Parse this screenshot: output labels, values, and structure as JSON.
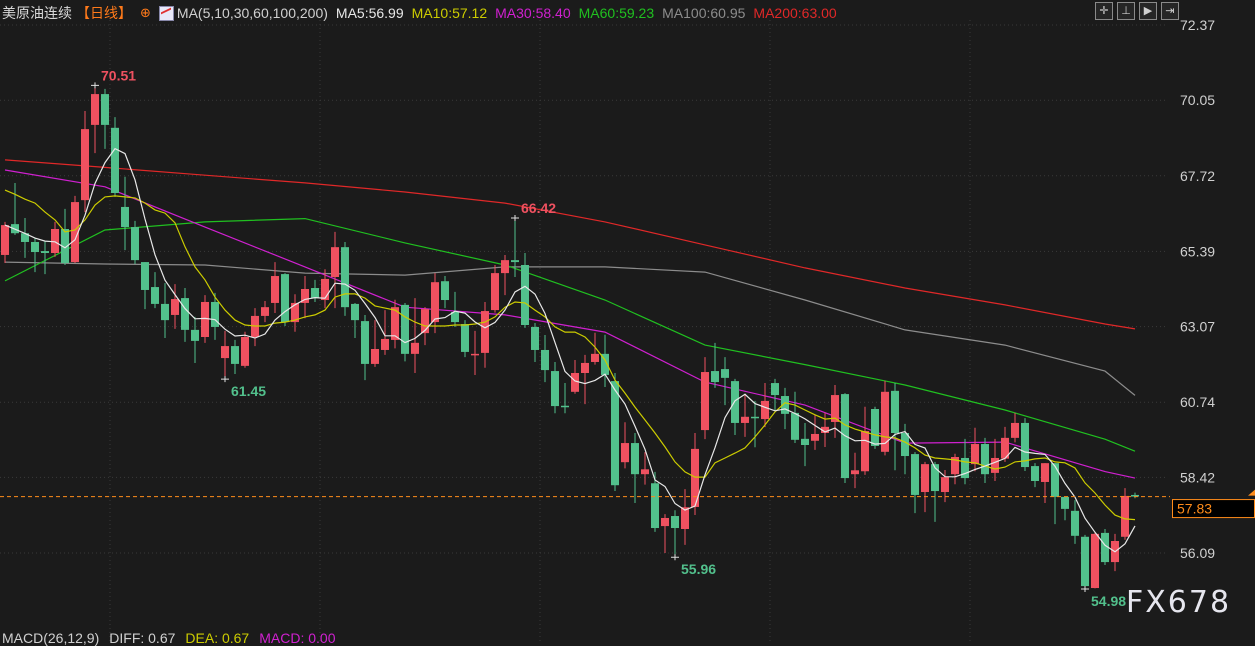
{
  "header": {
    "title": "美原油连续",
    "period": "【日线】",
    "ma_params": "MA(5,10,30,60,100,200)",
    "ma5": "MA5:56.99",
    "ma10": "MA10:57.12",
    "ma30": "MA30:58.40",
    "ma60": "MA60:59.23",
    "ma100": "MA100:60.95",
    "ma200": "MA200:63.00"
  },
  "toolbar": {
    "icons": [
      "crosshair-icon",
      "fit-range-icon",
      "play-icon",
      "exit-icon"
    ]
  },
  "macd": {
    "params": "MACD(26,12,9)",
    "diff": "DIFF: 0.67",
    "dea": "DEA: 0.67",
    "macd": "MACD: 0.00"
  },
  "watermark": "FX678",
  "colors": {
    "background": "#1b1b1b",
    "up": "#ef5160",
    "down": "#52c08c",
    "ma5": "#e8e8e8",
    "ma10": "#cccc00",
    "ma30": "#d020d0",
    "ma60": "#20c020",
    "ma100": "#8c8c8c",
    "ma200": "#e02828",
    "last_price": "#ff8c1a",
    "axis_text": "#d0d0d0"
  },
  "chart_data": {
    "type": "candlestick",
    "ylim": [
      54.7,
      72.37
    ],
    "y_ticks": [
      "72.37",
      "70.05",
      "67.72",
      "65.39",
      "63.07",
      "60.74",
      "58.42",
      "56.09"
    ],
    "grid": true,
    "last_price": "57.83",
    "ohlc_format": [
      "open",
      "high",
      "low",
      "close"
    ],
    "candles": [
      [
        65.28,
        66.3,
        65.03,
        66.2
      ],
      [
        66.23,
        67.5,
        65.9,
        65.95
      ],
      [
        65.95,
        66.42,
        65.19,
        65.68
      ],
      [
        65.68,
        65.8,
        64.75,
        65.37
      ],
      [
        65.4,
        65.71,
        64.69,
        65.34
      ],
      [
        65.34,
        66.3,
        65.22,
        66.08
      ],
      [
        66.08,
        66.7,
        64.97,
        65.03
      ],
      [
        65.06,
        67.1,
        65.03,
        66.91
      ],
      [
        66.97,
        69.72,
        66.6,
        69.16
      ],
      [
        69.29,
        70.51,
        68.42,
        70.24
      ],
      [
        70.24,
        70.4,
        68.55,
        69.29
      ],
      [
        69.2,
        69.53,
        67.07,
        67.19
      ],
      [
        66.76,
        67.69,
        65.43,
        66.14
      ],
      [
        66.14,
        66.33,
        65.0,
        65.12
      ],
      [
        65.06,
        65.06,
        63.61,
        64.2
      ],
      [
        64.29,
        64.75,
        63.64,
        63.77
      ],
      [
        63.77,
        64.41,
        62.72,
        63.27
      ],
      [
        63.43,
        64.38,
        63.0,
        63.92
      ],
      [
        63.95,
        64.26,
        62.6,
        62.97
      ],
      [
        62.97,
        63.37,
        61.95,
        62.63
      ],
      [
        62.75,
        64.04,
        62.57,
        63.83
      ],
      [
        63.83,
        64.11,
        62.66,
        63.06
      ],
      [
        62.1,
        62.94,
        61.45,
        62.47
      ],
      [
        62.47,
        62.66,
        61.61,
        61.92
      ],
      [
        61.86,
        62.91,
        61.8,
        62.75
      ],
      [
        62.75,
        63.64,
        62.47,
        63.4
      ],
      [
        63.4,
        63.86,
        63.21,
        63.67
      ],
      [
        63.8,
        65.06,
        63.49,
        64.63
      ],
      [
        64.69,
        64.72,
        63.09,
        63.21
      ],
      [
        63.21,
        64.07,
        62.91,
        63.8
      ],
      [
        63.8,
        64.63,
        63.33,
        64.23
      ],
      [
        64.26,
        64.51,
        63.83,
        63.95
      ],
      [
        63.89,
        64.84,
        63.64,
        64.54
      ],
      [
        64.6,
        65.99,
        63.64,
        65.52
      ],
      [
        65.52,
        65.68,
        63.4,
        63.67
      ],
      [
        63.77,
        63.8,
        62.72,
        63.27
      ],
      [
        63.24,
        63.43,
        61.42,
        61.92
      ],
      [
        61.92,
        63.27,
        61.83,
        62.38
      ],
      [
        62.35,
        63.58,
        62.2,
        62.69
      ],
      [
        62.66,
        63.9,
        62.4,
        63.67
      ],
      [
        63.74,
        63.8,
        62.0,
        62.23
      ],
      [
        62.23,
        63.95,
        61.64,
        62.57
      ],
      [
        62.87,
        63.67,
        62.5,
        63.61
      ],
      [
        63.21,
        64.72,
        62.87,
        64.44
      ],
      [
        64.47,
        64.63,
        63.64,
        63.89
      ],
      [
        63.52,
        64.14,
        63.06,
        63.21
      ],
      [
        63.15,
        63.27,
        62.13,
        62.29
      ],
      [
        62.2,
        62.94,
        61.58,
        62.23
      ],
      [
        62.26,
        63.83,
        61.8,
        63.55
      ],
      [
        63.58,
        64.97,
        63.5,
        64.72
      ],
      [
        64.72,
        65.28,
        64.04,
        65.12
      ],
      [
        65.12,
        66.42,
        64.6,
        65.06
      ],
      [
        64.97,
        65.34,
        63.03,
        63.12
      ],
      [
        63.06,
        63.18,
        61.98,
        62.35
      ],
      [
        62.35,
        62.81,
        61.36,
        61.73
      ],
      [
        61.7,
        61.98,
        60.4,
        60.62
      ],
      [
        60.63,
        61.33,
        60.4,
        60.62
      ],
      [
        61.06,
        62.04,
        61.0,
        61.64
      ],
      [
        61.64,
        62.2,
        60.68,
        61.95
      ],
      [
        61.98,
        62.88,
        61.9,
        62.23
      ],
      [
        62.23,
        62.82,
        61.21,
        61.58
      ],
      [
        61.39,
        61.64,
        58.0,
        58.18
      ],
      [
        58.89,
        60.12,
        58.7,
        59.48
      ],
      [
        59.48,
        59.79,
        57.63,
        58.52
      ],
      [
        58.52,
        59.2,
        58.2,
        58.67
      ],
      [
        58.24,
        58.59,
        56.74,
        56.86
      ],
      [
        56.92,
        57.29,
        56.09,
        57.17
      ],
      [
        57.23,
        57.41,
        55.96,
        56.86
      ],
      [
        56.83,
        58.06,
        56.34,
        57.5
      ],
      [
        57.51,
        59.79,
        57.26,
        59.3
      ],
      [
        59.88,
        62.13,
        59.6,
        61.67
      ],
      [
        61.7,
        62.57,
        61.18,
        61.36
      ],
      [
        61.76,
        62.13,
        60.65,
        61.49
      ],
      [
        61.39,
        61.46,
        59.73,
        60.1
      ],
      [
        60.1,
        61.0,
        59.67,
        60.29
      ],
      [
        60.29,
        60.78,
        59.35,
        60.25
      ],
      [
        60.22,
        61.33,
        59.97,
        60.78
      ],
      [
        61.33,
        61.46,
        60.5,
        60.96
      ],
      [
        60.93,
        61.18,
        59.91,
        60.38
      ],
      [
        60.41,
        61.06,
        59.48,
        59.58
      ],
      [
        59.61,
        60.1,
        58.77,
        59.42
      ],
      [
        59.55,
        60.35,
        59.27,
        59.76
      ],
      [
        59.79,
        60.41,
        59.36,
        59.98
      ],
      [
        60.13,
        61.27,
        59.64,
        60.96
      ],
      [
        60.99,
        61.02,
        58.25,
        58.4
      ],
      [
        58.52,
        59.18,
        58.09,
        58.64
      ],
      [
        58.61,
        60.6,
        58.5,
        59.85
      ],
      [
        60.53,
        60.6,
        59.3,
        59.39
      ],
      [
        59.21,
        61.4,
        59.1,
        61.06
      ],
      [
        61.09,
        61.33,
        58.64,
        59.79
      ],
      [
        59.79,
        60.07,
        58.52,
        59.08
      ],
      [
        59.14,
        59.2,
        57.32,
        57.88
      ],
      [
        57.97,
        58.9,
        57.35,
        58.83
      ],
      [
        58.83,
        58.9,
        57.05,
        58.0
      ],
      [
        57.97,
        58.65,
        57.66,
        58.43
      ],
      [
        58.52,
        59.15,
        58.21,
        59.05
      ],
      [
        59.02,
        59.61,
        58.21,
        58.4
      ],
      [
        58.83,
        59.95,
        58.61,
        59.45
      ],
      [
        59.45,
        59.64,
        58.25,
        58.52
      ],
      [
        58.56,
        59.61,
        58.31,
        59.02
      ],
      [
        59.0,
        59.98,
        58.9,
        59.64
      ],
      [
        59.64,
        60.41,
        59.5,
        60.1
      ],
      [
        60.1,
        60.25,
        58.62,
        58.74
      ],
      [
        58.77,
        58.86,
        58.12,
        58.31
      ],
      [
        58.28,
        58.86,
        57.63,
        58.86
      ],
      [
        58.86,
        58.86,
        56.98,
        57.82
      ],
      [
        57.82,
        57.82,
        57.1,
        57.45
      ],
      [
        57.39,
        57.72,
        56.37,
        56.62
      ],
      [
        56.59,
        56.65,
        54.98,
        55.07
      ],
      [
        55.01,
        56.74,
        55.0,
        56.68
      ],
      [
        56.71,
        56.83,
        55.72,
        55.81
      ],
      [
        55.81,
        56.68,
        55.53,
        56.46
      ],
      [
        56.59,
        58.09,
        56.5,
        57.85
      ],
      [
        57.88,
        57.95,
        57.78,
        57.83
      ]
    ],
    "ma10": [
      67.28,
      67.15,
      67.0,
      66.88,
      66.6,
      66.36,
      65.99,
      66.05,
      66.36,
      66.82,
      67.07,
      67.1,
      67.07,
      67.04,
      66.88,
      66.67,
      66.57,
      66.27,
      65.53,
      64.91,
      64.51,
      63.98,
      63.58,
      63.27,
      63.12,
      63.09,
      63.09,
      63.18,
      63.21,
      63.27,
      63.37,
      63.43,
      63.58,
      63.98,
      64.08,
      64.08,
      63.95,
      63.71,
      63.64,
      63.58,
      63.37,
      63.21,
      63.09,
      63.09,
      63.09,
      63.12,
      63.12,
      63.15,
      63.21,
      63.37,
      63.67,
      63.83,
      63.8,
      63.58,
      63.37,
      63.06,
      62.9,
      62.9,
      62.75,
      62.44,
      62.04,
      61.42,
      61.02,
      60.59,
      60.19,
      59.79,
      59.36,
      58.9,
      58.59,
      58.43,
      58.43,
      58.87,
      59.02,
      59.17,
      59.33,
      59.67,
      60.04,
      60.44,
      60.72,
      60.65,
      60.5,
      60.35,
      60.22,
      60.25,
      60.04,
      59.91,
      59.82,
      59.73,
      59.67,
      59.64,
      59.51,
      59.33,
      59.11,
      59.02,
      58.99,
      58.96,
      58.9,
      58.87,
      58.77,
      58.68,
      58.74,
      58.9,
      58.93,
      58.99,
      59.02,
      58.9,
      58.87,
      58.71,
      58.25,
      57.94,
      57.57,
      57.26,
      57.14,
      57.12
    ],
    "ma_sample_index": [
      0,
      10,
      20,
      30,
      40,
      50,
      60,
      70,
      80,
      90,
      100,
      110,
      113
    ],
    "ma30": [
      67.9,
      67.38,
      66.14,
      64.91,
      63.67,
      63.43,
      62.9,
      61.36,
      60.65,
      59.48,
      59.51,
      58.6,
      58.4
    ],
    "ma60": [
      64.48,
      66.05,
      66.3,
      66.4,
      65.65,
      64.97,
      63.89,
      62.5,
      61.9,
      61.27,
      60.5,
      59.6,
      59.23
    ],
    "ma100": [
      65.06,
      65.0,
      64.97,
      64.72,
      64.66,
      64.91,
      64.91,
      64.75,
      63.89,
      62.97,
      62.5,
      61.7,
      60.95
    ],
    "ma200": [
      68.21,
      67.98,
      67.74,
      67.5,
      67.22,
      66.88,
      66.3,
      65.59,
      64.88,
      64.26,
      63.74,
      63.15,
      63.0
    ],
    "annotations": [
      {
        "candle": 9,
        "type": "high",
        "text": "70.51"
      },
      {
        "candle": 51,
        "type": "high",
        "text": "66.42"
      },
      {
        "candle": 22,
        "type": "low",
        "text": "61.45"
      },
      {
        "candle": 67,
        "type": "low",
        "text": "55.96"
      },
      {
        "candle": 108,
        "type": "low",
        "text": "54.98"
      }
    ]
  }
}
